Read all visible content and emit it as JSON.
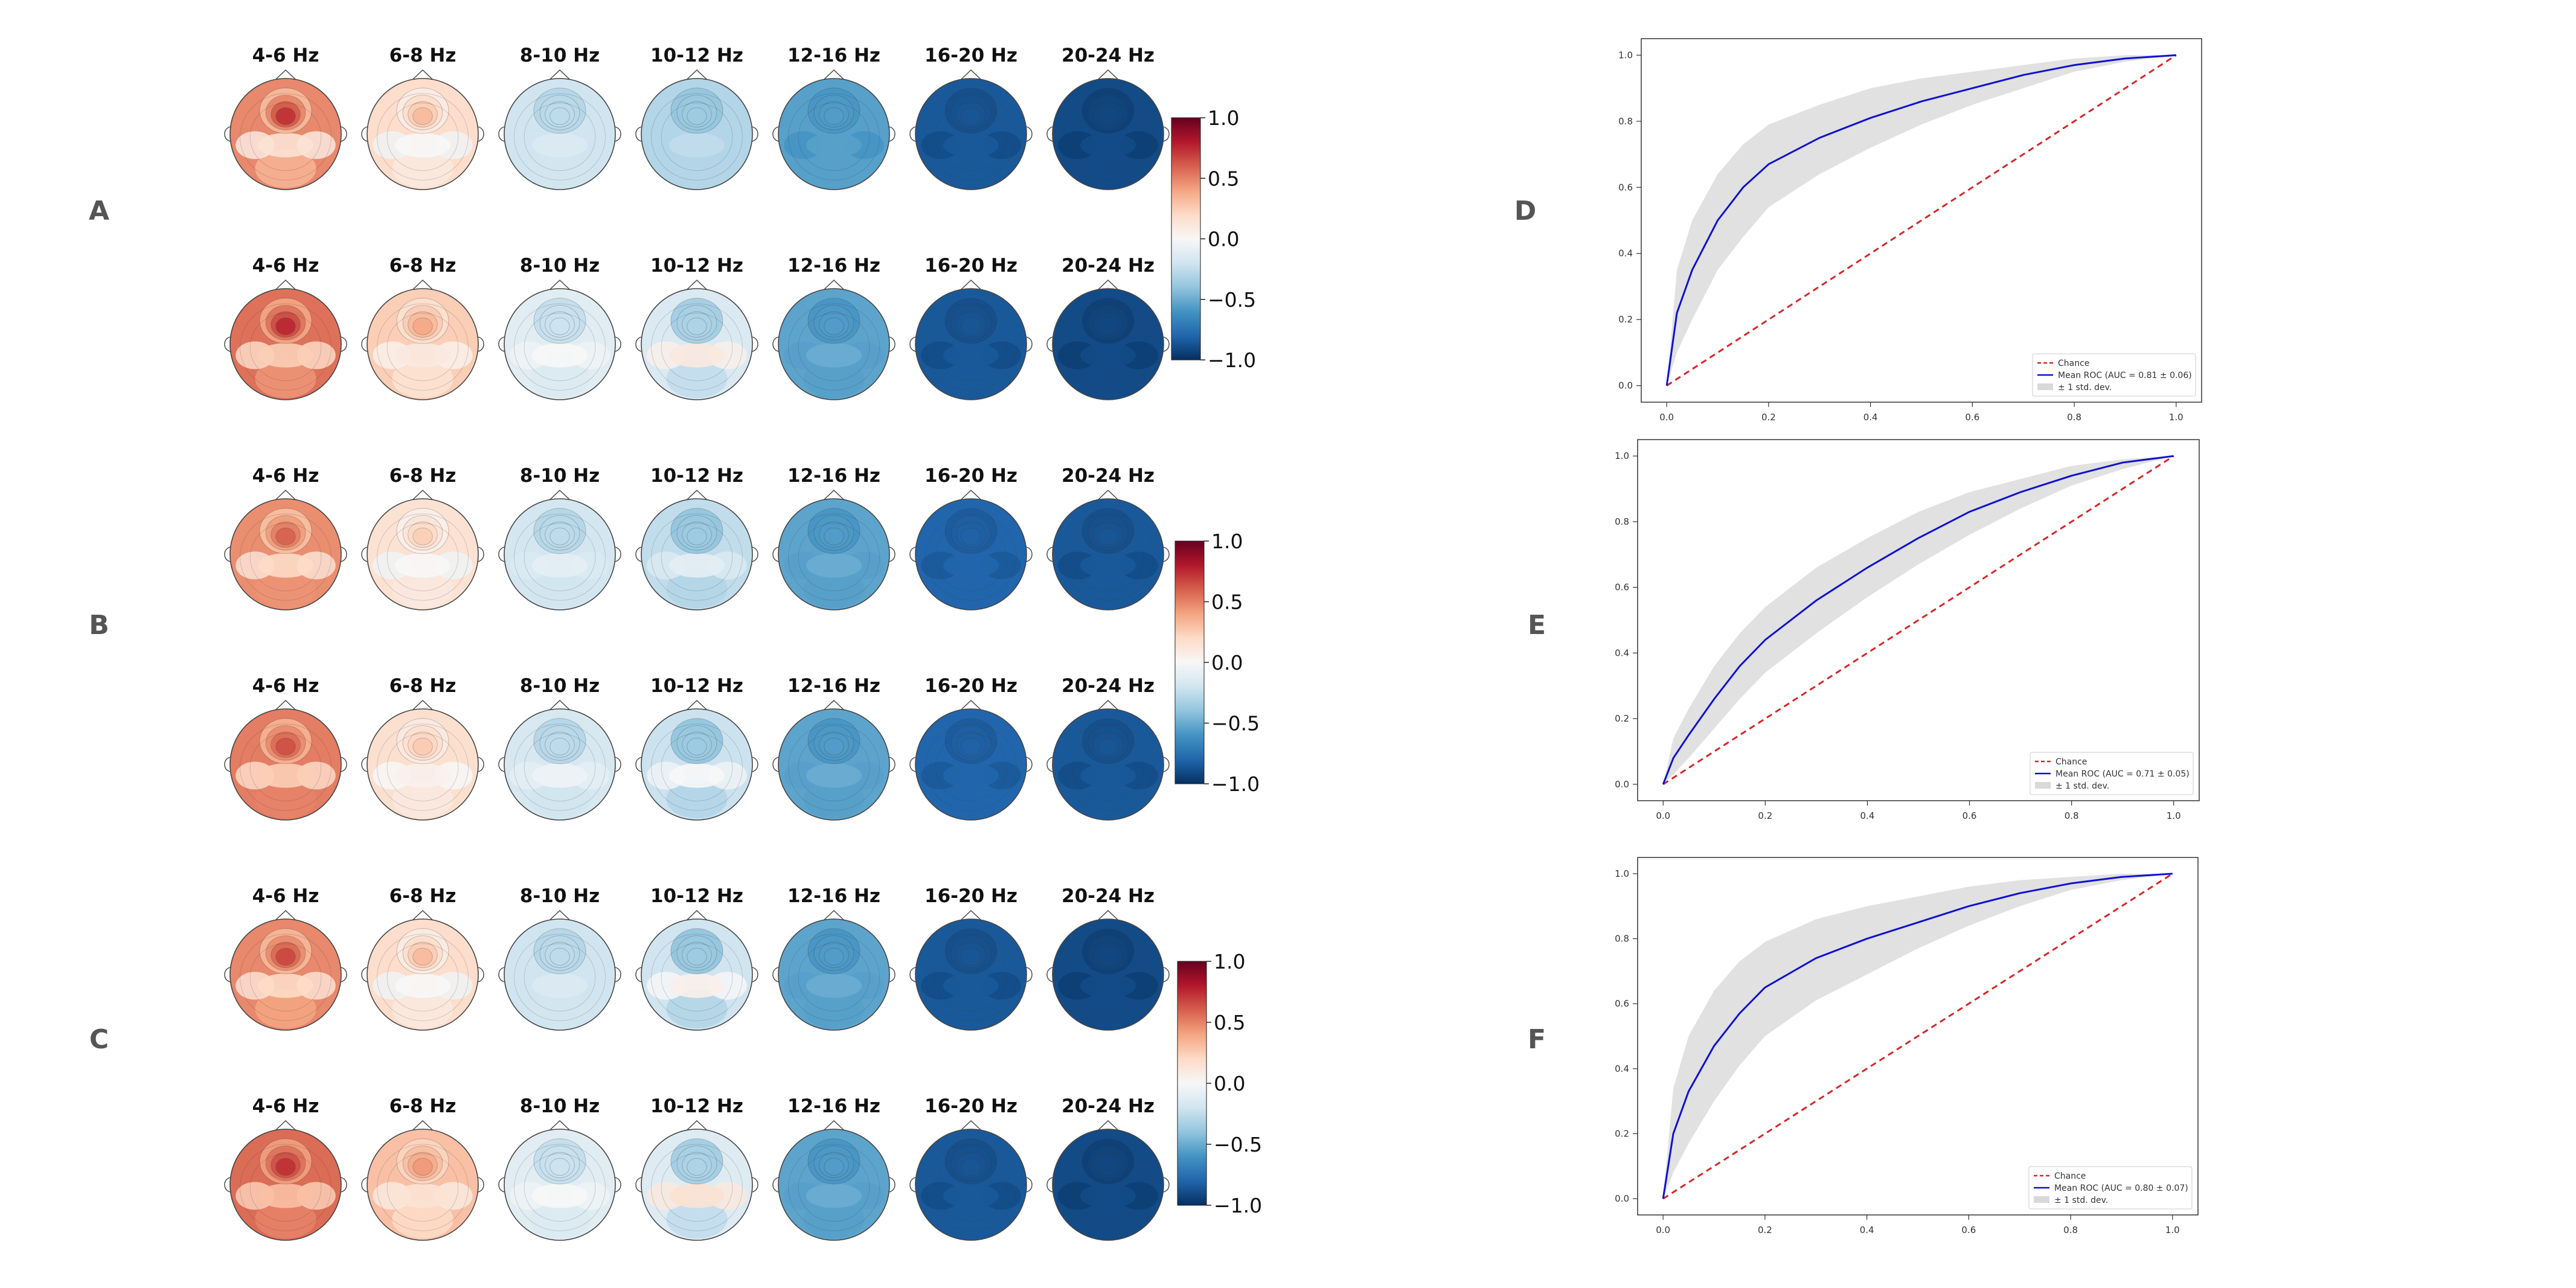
{
  "panels": {
    "topomap_labels": [
      "A",
      "B",
      "C"
    ],
    "roc_labels": [
      "D",
      "E",
      "F"
    ]
  },
  "bands": [
    "4-6 Hz",
    "6-8 Hz",
    "8-10 Hz",
    "10-12 Hz",
    "12-16 Hz",
    "16-20 Hz",
    "20-24 Hz"
  ],
  "topomaps": [
    {
      "panel": "A",
      "rows": [
        {
          "front": [
            0.95,
            0.45,
            -0.25,
            -0.35,
            -0.55,
            -0.85,
            -0.9
          ],
          "center": [
            0.15,
            0.0,
            -0.15,
            -0.25,
            -0.55,
            -0.85,
            -0.9
          ],
          "back": [
            0.35,
            0.1,
            -0.2,
            -0.3,
            -0.55,
            -0.85,
            -0.9
          ]
        },
        {
          "front": [
            0.95,
            0.5,
            -0.2,
            -0.3,
            -0.55,
            -0.85,
            -0.9
          ],
          "center": [
            0.25,
            0.1,
            0.0,
            0.1,
            -0.5,
            -0.85,
            -0.9
          ],
          "back": [
            0.45,
            0.15,
            -0.15,
            -0.25,
            -0.55,
            -0.85,
            -0.9
          ]
        }
      ]
    },
    {
      "panel": "B",
      "rows": [
        {
          "front": [
            0.75,
            0.35,
            -0.25,
            -0.35,
            -0.55,
            -0.8,
            -0.85
          ],
          "center": [
            0.2,
            0.0,
            -0.1,
            -0.1,
            -0.5,
            -0.8,
            -0.85
          ],
          "back": [
            0.45,
            0.1,
            -0.2,
            -0.3,
            -0.55,
            -0.8,
            -0.85
          ]
        },
        {
          "front": [
            0.8,
            0.35,
            -0.25,
            -0.35,
            -0.55,
            -0.8,
            -0.85
          ],
          "center": [
            0.25,
            0.05,
            -0.05,
            0.0,
            -0.5,
            -0.8,
            -0.85
          ],
          "back": [
            0.5,
            0.1,
            -0.2,
            -0.3,
            -0.55,
            -0.8,
            -0.85
          ]
        }
      ]
    },
    {
      "panel": "C",
      "rows": [
        {
          "front": [
            0.85,
            0.45,
            -0.25,
            -0.35,
            -0.55,
            -0.85,
            -0.9
          ],
          "center": [
            0.2,
            0.0,
            -0.15,
            0.05,
            -0.5,
            -0.85,
            -0.9
          ],
          "back": [
            0.4,
            0.1,
            -0.2,
            -0.3,
            -0.55,
            -0.85,
            -0.9
          ]
        },
        {
          "front": [
            0.9,
            0.55,
            -0.2,
            -0.3,
            -0.55,
            -0.85,
            -0.9
          ],
          "center": [
            0.3,
            0.15,
            0.0,
            0.15,
            -0.5,
            -0.85,
            -0.9
          ],
          "back": [
            0.5,
            0.2,
            -0.15,
            -0.25,
            -0.55,
            -0.85,
            -0.9
          ]
        }
      ]
    }
  ],
  "colorbar": {
    "ticks": [
      "1.0",
      "0.5",
      "0.0",
      "−0.5",
      "−1.0"
    ],
    "colors": [
      "#67001f",
      "#b2182b",
      "#d6604d",
      "#f4a582",
      "#fddbc7",
      "#f7f7f7",
      "#d1e5f0",
      "#92c5de",
      "#4393c3",
      "#2166ac",
      "#053061"
    ]
  },
  "chart_data": [
    {
      "type": "line",
      "panel": "D",
      "x": [
        0,
        0.02,
        0.05,
        0.1,
        0.15,
        0.2,
        0.3,
        0.4,
        0.5,
        0.6,
        0.7,
        0.8,
        0.9,
        1.0
      ],
      "series": [
        {
          "name": "Chance",
          "values": [
            0,
            0.02,
            0.05,
            0.1,
            0.15,
            0.2,
            0.3,
            0.4,
            0.5,
            0.6,
            0.7,
            0.8,
            0.9,
            1.0
          ]
        },
        {
          "name": "Mean ROC (AUC = 0.81 ± 0.06)",
          "values": [
            0,
            0.22,
            0.35,
            0.5,
            0.6,
            0.67,
            0.75,
            0.81,
            0.86,
            0.9,
            0.94,
            0.97,
            0.99,
            1.0
          ]
        },
        {
          "name": "± 1 std. dev.",
          "lower": [
            0,
            0.1,
            0.2,
            0.35,
            0.45,
            0.54,
            0.64,
            0.72,
            0.79,
            0.85,
            0.9,
            0.95,
            0.98,
            1.0
          ],
          "upper": [
            0,
            0.35,
            0.5,
            0.64,
            0.73,
            0.79,
            0.85,
            0.9,
            0.93,
            0.95,
            0.97,
            0.99,
            1.0,
            1.0
          ]
        }
      ],
      "xticks": [
        "0.0",
        "0.2",
        "0.4",
        "0.6",
        "0.8",
        "1.0"
      ],
      "yticks": [
        "0.0",
        "0.2",
        "0.4",
        "0.6",
        "0.8",
        "1.0"
      ],
      "xlim": [
        -0.05,
        1.05
      ],
      "ylim": [
        -0.05,
        1.05
      ],
      "grid": false,
      "legend": "bottom-right"
    },
    {
      "type": "line",
      "panel": "E",
      "x": [
        0,
        0.02,
        0.05,
        0.1,
        0.15,
        0.2,
        0.3,
        0.4,
        0.5,
        0.6,
        0.7,
        0.8,
        0.9,
        1.0
      ],
      "series": [
        {
          "name": "Chance",
          "values": [
            0,
            0.02,
            0.05,
            0.1,
            0.15,
            0.2,
            0.3,
            0.4,
            0.5,
            0.6,
            0.7,
            0.8,
            0.9,
            1.0
          ]
        },
        {
          "name": "Mean ROC (AUC = 0.71 ± 0.05)",
          "values": [
            0,
            0.08,
            0.15,
            0.26,
            0.36,
            0.44,
            0.56,
            0.66,
            0.75,
            0.83,
            0.89,
            0.94,
            0.98,
            1.0
          ]
        },
        {
          "name": "± 1 std. dev.",
          "lower": [
            0,
            0.03,
            0.08,
            0.17,
            0.26,
            0.34,
            0.46,
            0.57,
            0.67,
            0.76,
            0.84,
            0.91,
            0.96,
            1.0
          ],
          "upper": [
            0,
            0.14,
            0.23,
            0.36,
            0.46,
            0.54,
            0.66,
            0.75,
            0.83,
            0.89,
            0.93,
            0.97,
            0.99,
            1.0
          ]
        }
      ],
      "xticks": [
        "0.0",
        "0.2",
        "0.4",
        "0.6",
        "0.8",
        "1.0"
      ],
      "yticks": [
        "0.0",
        "0.2",
        "0.4",
        "0.6",
        "0.8",
        "1.0"
      ],
      "xlim": [
        -0.05,
        1.05
      ],
      "ylim": [
        -0.05,
        1.05
      ],
      "grid": false,
      "legend": "bottom-right"
    },
    {
      "type": "line",
      "panel": "F",
      "x": [
        0,
        0.02,
        0.05,
        0.1,
        0.15,
        0.2,
        0.3,
        0.4,
        0.5,
        0.6,
        0.7,
        0.8,
        0.9,
        1.0
      ],
      "series": [
        {
          "name": "Chance",
          "values": [
            0,
            0.02,
            0.05,
            0.1,
            0.15,
            0.2,
            0.3,
            0.4,
            0.5,
            0.6,
            0.7,
            0.8,
            0.9,
            1.0
          ]
        },
        {
          "name": "Mean ROC (AUC = 0.80 ± 0.07)",
          "values": [
            0,
            0.2,
            0.33,
            0.47,
            0.57,
            0.65,
            0.74,
            0.8,
            0.85,
            0.9,
            0.94,
            0.97,
            0.99,
            1.0
          ]
        },
        {
          "name": "± 1 std. dev.",
          "lower": [
            0,
            0.08,
            0.17,
            0.3,
            0.41,
            0.5,
            0.61,
            0.69,
            0.77,
            0.84,
            0.9,
            0.95,
            0.98,
            1.0
          ],
          "upper": [
            0,
            0.34,
            0.5,
            0.64,
            0.73,
            0.79,
            0.86,
            0.9,
            0.93,
            0.96,
            0.98,
            0.99,
            1.0,
            1.0
          ]
        }
      ],
      "xticks": [
        "0.0",
        "0.2",
        "0.4",
        "0.6",
        "0.8",
        "1.0"
      ],
      "yticks": [
        "0.0",
        "0.2",
        "0.4",
        "0.6",
        "0.8",
        "1.0"
      ],
      "xlim": [
        -0.05,
        1.05
      ],
      "ylim": [
        -0.05,
        1.05
      ],
      "grid": false,
      "legend": "bottom-right"
    }
  ]
}
